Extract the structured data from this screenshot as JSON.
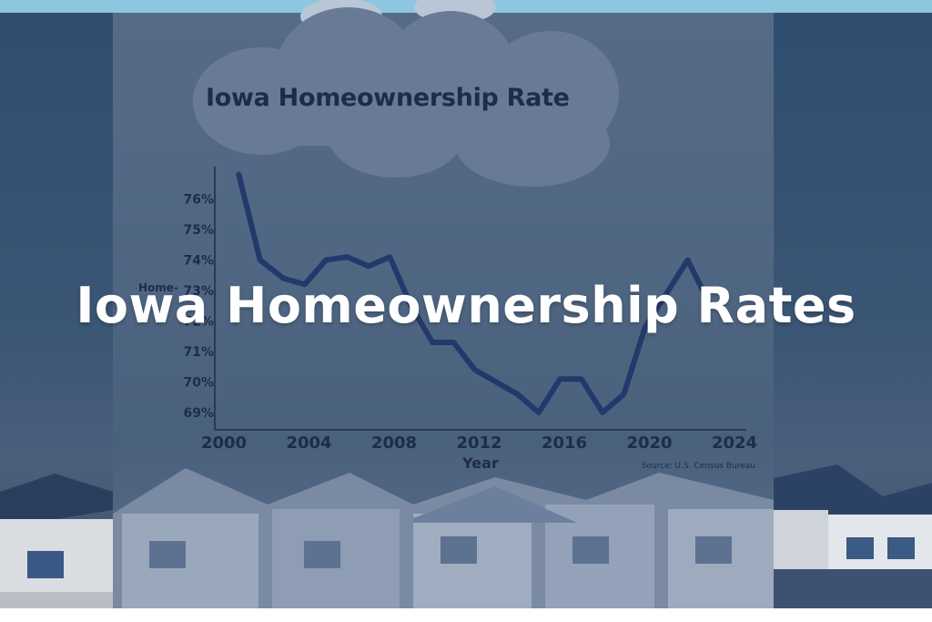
{
  "headline": "Iowa Homeownership Rates",
  "colors": {
    "line": "#23396b",
    "text": "#1e2c4a",
    "headline": "#ffffff"
  },
  "chart_data": {
    "type": "line",
    "title": "Iowa Homeownership Rate",
    "xlabel": "Year",
    "ylabel": "Home-",
    "source": "Source: U.S. Census Bureau",
    "x_ticks": [
      "2000",
      "2004",
      "2008",
      "2012",
      "2016",
      "2020",
      "2024"
    ],
    "y_ticks": [
      "69%",
      "70%",
      "71%",
      "72%",
      "73%",
      "74%",
      "75%",
      "76%"
    ],
    "xlim": [
      2000,
      2024
    ],
    "ylim": [
      68.5,
      77
    ],
    "series": [
      {
        "name": "Iowa Homeownership Rate",
        "x": [
          2000.7,
          2001.7,
          2002.8,
          2003.8,
          2004.8,
          2005.8,
          2006.8,
          2007.8,
          2008.8,
          2009.8,
          2010.8,
          2011.8,
          2012.8,
          2013.8,
          2014.8,
          2015.8,
          2016.8,
          2017.8,
          2018.8,
          2019.8,
          2020.8,
          2021.8,
          2022.8
        ],
        "y": [
          76.8,
          74.0,
          73.4,
          73.2,
          74.0,
          74.1,
          73.8,
          74.1,
          72.5,
          71.3,
          71.3,
          70.4,
          70.0,
          69.6,
          69.0,
          70.1,
          70.1,
          69.0,
          69.6,
          71.8,
          72.9,
          74.0,
          72.6
        ]
      }
    ]
  }
}
